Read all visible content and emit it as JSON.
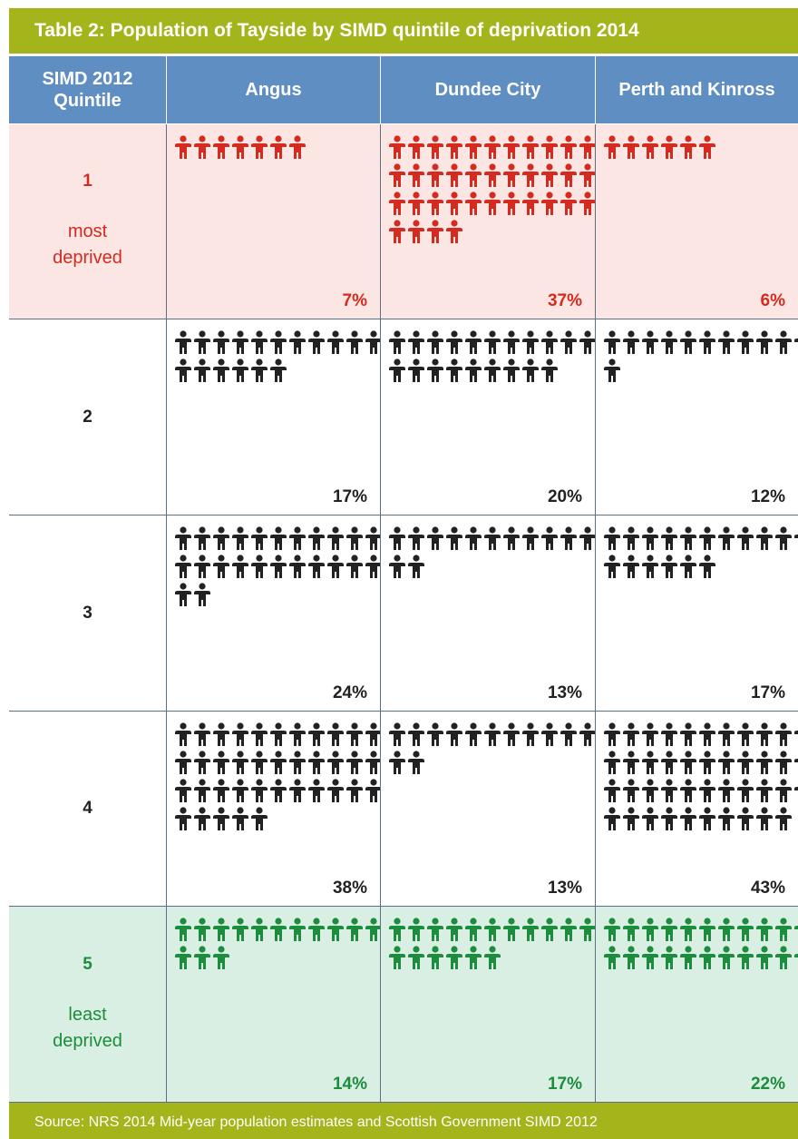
{
  "title": "Table 2: Population of Tayside by SIMD quintile of deprivation 2014",
  "source": "Source: NRS 2014 Mid-year population estimates and Scottish Government SIMD 2012",
  "header": {
    "quintile": "SIMD 2012 Quintile",
    "areas": [
      "Angus",
      "Dundee City",
      "Perth and Kinross"
    ]
  },
  "colors": {
    "title_bar": "#a3b51a",
    "header": "#5f8ec2",
    "most_deprived": "#d42a1f",
    "least_deprived": "#1c8c3d",
    "neutral": "#222222",
    "row1_bg": "#fbe6e3",
    "row5_bg": "#d9efe4"
  },
  "icon": "person-figure-icon",
  "rows": [
    {
      "quintile": "1",
      "desc_line1": "most",
      "desc_line2": "deprived",
      "percents": [
        "7%",
        "37%",
        "6%"
      ]
    },
    {
      "quintile": "2",
      "desc_line1": "",
      "desc_line2": "",
      "percents": [
        "17%",
        "20%",
        "12%"
      ]
    },
    {
      "quintile": "3",
      "desc_line1": "",
      "desc_line2": "",
      "percents": [
        "24%",
        "13%",
        "17%"
      ]
    },
    {
      "quintile": "4",
      "desc_line1": "",
      "desc_line2": "",
      "percents": [
        "38%",
        "13%",
        "43%"
      ]
    },
    {
      "quintile": "5",
      "desc_line1": "least",
      "desc_line2": "deprived",
      "percents": [
        "14%",
        "17%",
        "22%"
      ]
    }
  ],
  "chart_data": {
    "type": "table",
    "title": "Table 2: Population of Tayside by SIMD quintile of deprivation 2014",
    "categories": [
      "1",
      "2",
      "3",
      "4",
      "5"
    ],
    "series": [
      {
        "name": "Angus",
        "values": [
          7,
          17,
          24,
          38,
          14
        ]
      },
      {
        "name": "Dundee City",
        "values": [
          37,
          20,
          13,
          13,
          17
        ]
      },
      {
        "name": "Perth and Kinross",
        "values": [
          6,
          12,
          17,
          43,
          22
        ]
      }
    ]
  }
}
